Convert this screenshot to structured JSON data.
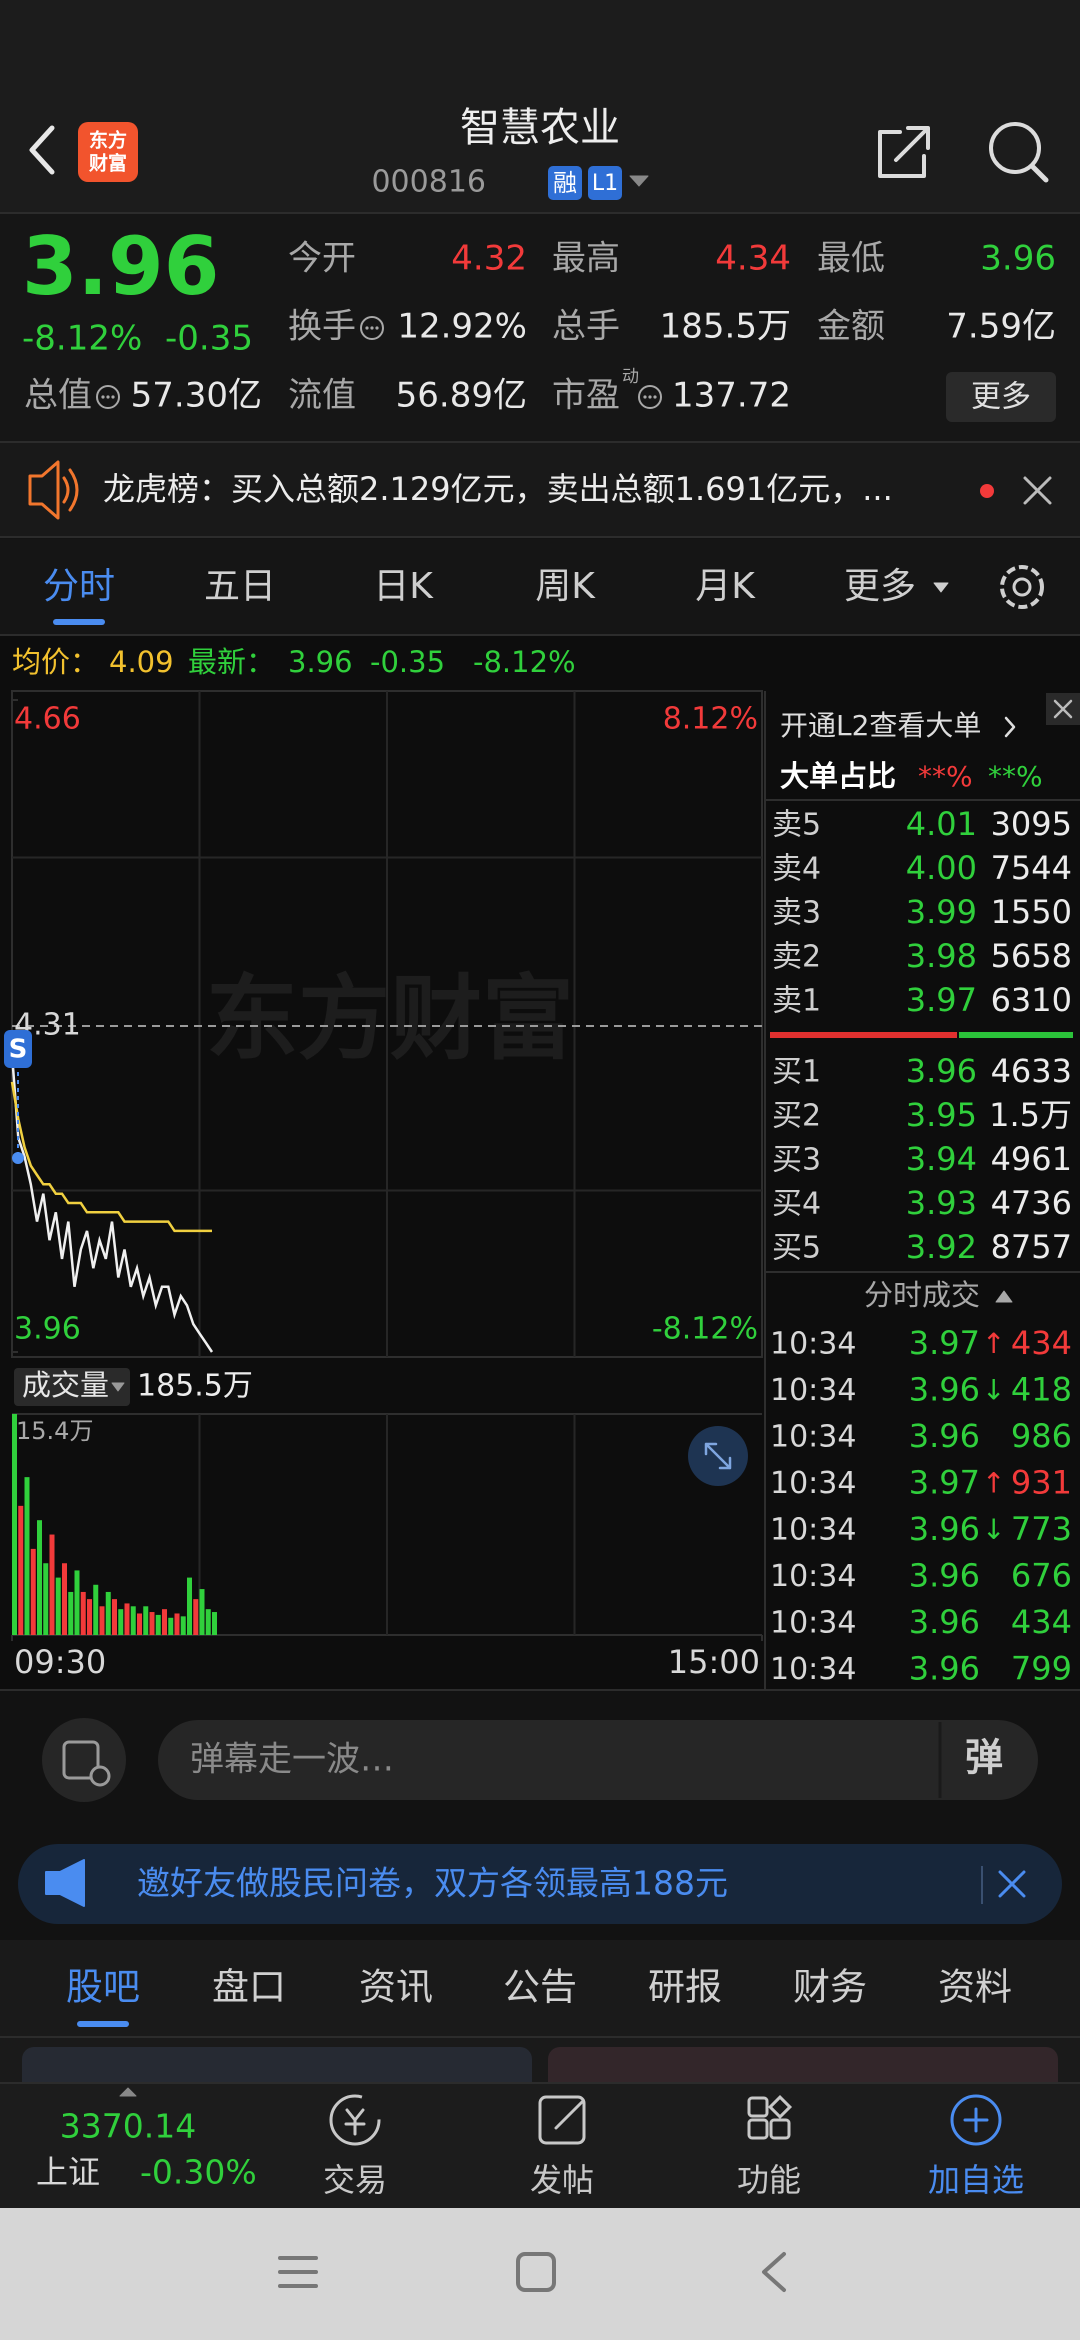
{
  "header": {
    "logo": [
      "东方",
      "财富"
    ],
    "title": "智慧农业",
    "code": "000816",
    "badges": [
      "融",
      "L1"
    ]
  },
  "quote": {
    "price": "3.96",
    "change_pct": "-8.12%",
    "change": "-0.35",
    "stats": [
      {
        "label": "今开",
        "value": "4.32",
        "color": "red"
      },
      {
        "label": "最高",
        "value": "4.34",
        "color": "red"
      },
      {
        "label": "最低",
        "value": "3.96",
        "color": "green"
      },
      {
        "label": "换手",
        "value": "12.92%",
        "info": true
      },
      {
        "label": "总手",
        "value": "185.5万"
      },
      {
        "label": "金额",
        "value": "7.59亿"
      },
      {
        "label": "总值",
        "value": "57.30亿",
        "info": true
      },
      {
        "label": "流值",
        "value": "56.89亿"
      },
      {
        "label": "市盈",
        "sup": "动",
        "value": "137.72",
        "info": true
      }
    ],
    "more": "更多"
  },
  "notice": {
    "text": "龙虎榜：买入总额2.129亿元，卖出总额1.691亿元，..."
  },
  "tabs": {
    "items": [
      "分时",
      "五日",
      "日K",
      "周K",
      "月K",
      "更多"
    ],
    "active": 0
  },
  "chart_data": {
    "type": "line",
    "watermark": "东方财富",
    "marker": "S",
    "summary": [
      {
        "text": "均价：",
        "color": "yellow"
      },
      {
        "text": "4.09",
        "color": "yellow"
      },
      {
        "text": "最新：",
        "color": "green"
      },
      {
        "text": "3.96",
        "color": "green"
      },
      {
        "text": "-0.35",
        "color": "green"
      },
      {
        "text": "-8.12%",
        "color": "green"
      }
    ],
    "x": [
      0,
      2,
      4,
      6,
      8,
      10,
      12,
      14,
      16,
      18,
      20,
      22,
      24,
      26,
      28,
      30,
      32,
      34,
      36,
      38,
      40,
      42,
      44,
      46,
      48,
      50,
      52,
      54,
      56,
      58,
      60,
      62,
      64
    ],
    "xlim": [
      0,
      240
    ],
    "xticks": [
      {
        "value": 0,
        "label": "09:30"
      },
      {
        "value": 240,
        "label": "15:00"
      }
    ],
    "ylim": [
      3.96,
      4.66
    ],
    "yticks": [
      3.96,
      4.31,
      4.66
    ],
    "pct_labels": [
      "-8.12%",
      "8.12%"
    ],
    "series": [
      {
        "color": "#f0f0f0",
        "values": [
          4.28,
          4.19,
          4.17,
          4.14,
          4.1,
          4.13,
          4.08,
          4.11,
          4.06,
          4.1,
          4.03,
          4.07,
          4.09,
          4.05,
          4.08,
          4.06,
          4.1,
          4.04,
          4.07,
          4.03,
          4.05,
          4.02,
          4.04,
          4.01,
          4.03,
          4.03,
          4.0,
          4.02,
          4.01,
          3.99,
          3.98,
          3.97,
          3.96
        ]
      },
      {
        "color": "#f0d040",
        "values": [
          4.25,
          4.21,
          4.18,
          4.16,
          4.15,
          4.14,
          4.14,
          4.13,
          4.13,
          4.12,
          4.12,
          4.12,
          4.11,
          4.11,
          4.11,
          4.11,
          4.11,
          4.11,
          4.1,
          4.1,
          4.1,
          4.1,
          4.1,
          4.1,
          4.1,
          4.1,
          4.09,
          4.09,
          4.09,
          4.09,
          4.09,
          4.09,
          4.09
        ]
      }
    ],
    "volume": {
      "label": "成交量",
      "total": "185.5万",
      "ylim": [
        0,
        15.4
      ],
      "yticks": [
        {
          "value": 15.4,
          "label": "15.4万"
        }
      ],
      "values": [
        15.4,
        9,
        11,
        6,
        8,
        5,
        7,
        4,
        5,
        3,
        4.5,
        3,
        2.5,
        3.5,
        2,
        3,
        2.5,
        1.8,
        2.2,
        2,
        1.5,
        2,
        1.6,
        1.4,
        1.8,
        1.2,
        1.5,
        1.3,
        4,
        2.5,
        3.2,
        1.8,
        1.6
      ],
      "colors": [
        "#30d03c",
        "#f23a3a",
        "#30d03c",
        "#f23a3a",
        "#30d03c",
        "#30d03c",
        "#f23a3a",
        "#30d03c",
        "#f23a3a",
        "#30d03c",
        "#30d03c",
        "#f23a3a",
        "#f23a3a",
        "#30d03c",
        "#f23a3a",
        "#30d03c",
        "#f23a3a",
        "#30d03c",
        "#f23a3a",
        "#30d03c",
        "#f23a3a",
        "#30d03c",
        "#f23a3a",
        "#30d03c",
        "#f23a3a",
        "#30d03c",
        "#f23a3a",
        "#30d03c",
        "#30d03c",
        "#f23a3a",
        "#30d03c",
        "#30d03c",
        "#30d03c"
      ]
    }
  },
  "order_book": {
    "cta": "开通L2查看大单",
    "ratio_label": "大单占比",
    "ratio_buy": "**%",
    "ratio_sell": "**%",
    "asks": [
      {
        "label": "卖5",
        "price": "4.01",
        "volume": "3095"
      },
      {
        "label": "卖4",
        "price": "4.00",
        "volume": "7544"
      },
      {
        "label": "卖3",
        "price": "3.99",
        "volume": "1550"
      },
      {
        "label": "卖2",
        "price": "3.98",
        "volume": "5658"
      },
      {
        "label": "卖1",
        "price": "3.97",
        "volume": "6310"
      }
    ],
    "bids": [
      {
        "label": "买1",
        "price": "3.96",
        "volume": "4633"
      },
      {
        "label": "买2",
        "price": "3.95",
        "volume": "1.5万"
      },
      {
        "label": "买3",
        "price": "3.94",
        "volume": "4961"
      },
      {
        "label": "买4",
        "price": "3.93",
        "volume": "4736"
      },
      {
        "label": "买5",
        "price": "3.92",
        "volume": "8757"
      }
    ]
  },
  "trades": {
    "title": "分时成交",
    "rows": [
      {
        "time": "10:34",
        "price": "3.97",
        "dir": "↑",
        "volume": "434",
        "color": "red"
      },
      {
        "time": "10:34",
        "price": "3.96",
        "dir": "↓",
        "volume": "418",
        "color": "green"
      },
      {
        "time": "10:34",
        "price": "3.96",
        "volume": "986",
        "color": "green"
      },
      {
        "time": "10:34",
        "price": "3.97",
        "dir": "↑",
        "volume": "931",
        "color": "red"
      },
      {
        "time": "10:34",
        "price": "3.96",
        "dir": "↓",
        "volume": "773",
        "color": "green"
      },
      {
        "time": "10:34",
        "price": "3.96",
        "volume": "676",
        "color": "green"
      },
      {
        "time": "10:34",
        "price": "3.96",
        "volume": "434",
        "color": "green"
      },
      {
        "time": "10:34",
        "price": "3.96",
        "volume": "799",
        "color": "green"
      }
    ]
  },
  "comment": {
    "placeholder": "弹幕走一波…",
    "button": "弹"
  },
  "promo": {
    "text": "邀好友做股民问卷，双方各领最高188元"
  },
  "sections": {
    "items": [
      "股吧",
      "盘口",
      "资讯",
      "公告",
      "研报",
      "财务",
      "资料"
    ],
    "active": 0
  },
  "bottom_nav": {
    "index": {
      "value": "3370.14",
      "name": "上证",
      "change": "-0.30%"
    },
    "items": [
      {
        "label": "交易"
      },
      {
        "label": "发帖"
      },
      {
        "label": "功能"
      },
      {
        "label": "加自选",
        "active": true
      }
    ]
  }
}
